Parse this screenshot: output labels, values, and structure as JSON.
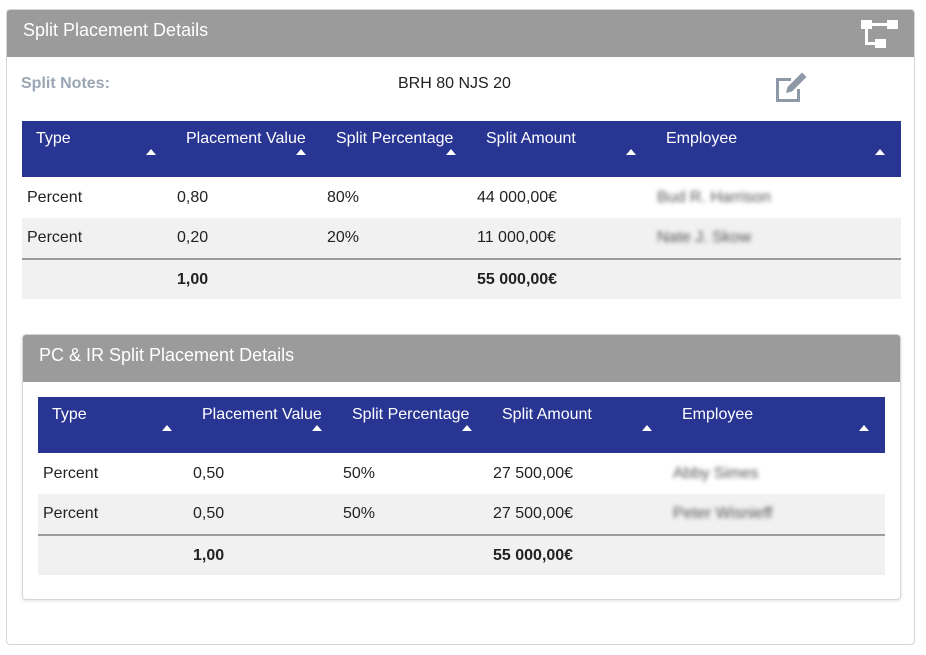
{
  "panel": {
    "title": "Split Placement Details",
    "notes_label": "Split Notes:",
    "notes_value": "BRH 80 NJS 20"
  },
  "columns": [
    "Type",
    "Placement Value",
    "Split Percentage",
    "Split Amount",
    "Employee"
  ],
  "table1": {
    "headers": {
      "type": "Type",
      "placement_value": "Placement Value",
      "split_percentage": "Split Percentage",
      "split_amount": "Split Amount",
      "employee": "Employee"
    },
    "rows": [
      {
        "type": "Percent",
        "placement_value": "0,80",
        "split_percentage": "80%",
        "split_amount": "44 000,00€",
        "employee": "Bud R. Harrison"
      },
      {
        "type": "Percent",
        "placement_value": "0,20",
        "split_percentage": "20%",
        "split_amount": "11 000,00€",
        "employee": "Nate J. Skow"
      }
    ],
    "total": {
      "placement_value": "1,00",
      "split_amount": "55 000,00€"
    }
  },
  "sub_panel": {
    "title": "PC & IR Split Placement Details"
  },
  "table2": {
    "headers": {
      "type": "Type",
      "placement_value": "Placement Value",
      "split_percentage": "Split Percentage",
      "split_amount": "Split Amount",
      "employee": "Employee"
    },
    "rows": [
      {
        "type": "Percent",
        "placement_value": "0,50",
        "split_percentage": "50%",
        "split_amount": "27 500,00€",
        "employee": "Abby Simes"
      },
      {
        "type": "Percent",
        "placement_value": "0,50",
        "split_percentage": "50%",
        "split_amount": "27 500,00€",
        "employee": "Peter Wisnieff"
      }
    ],
    "total": {
      "placement_value": "1,00",
      "split_amount": "55 000,00€"
    }
  },
  "icons": {
    "header_right": "hierarchy-tree-icon",
    "edit": "edit-pencil-icon",
    "sort": "sort-caret-up-icon"
  },
  "colors": {
    "header_gray": "#9b9b9b",
    "table_header_blue": "#283593",
    "notes_label": "#9aa6b4",
    "alt_row": "#f1f1f1"
  }
}
